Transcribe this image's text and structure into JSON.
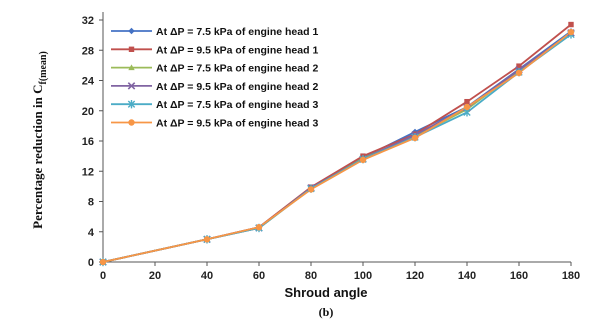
{
  "chart_data": {
    "type": "line",
    "xlabel": "Shroud angle",
    "ylabel_main": "Percentage reduction in C",
    "ylabel_sub": "f(mean)",
    "caption": "(b)",
    "xlim": [
      0,
      180
    ],
    "ylim": [
      0,
      32
    ],
    "x_ticks": [
      "0",
      "20",
      "40",
      "60",
      "80",
      "100",
      "120",
      "140",
      "160",
      "180"
    ],
    "y_ticks": [
      "0",
      "4",
      "8",
      "12",
      "16",
      "20",
      "24",
      "28",
      "32"
    ],
    "grid": false,
    "legend_position": "top-left",
    "x": [
      0,
      40,
      60,
      80,
      100,
      120,
      140,
      160,
      180
    ],
    "series": [
      {
        "name": "At ΔP = 7.5 kPa of engine head 1",
        "color": "#4472c4",
        "marker": "diamond",
        "values": [
          0,
          3.0,
          4.6,
          9.8,
          13.8,
          17.2,
          20.5,
          25.5,
          30.5
        ]
      },
      {
        "name": "At ΔP = 9.5 kPa of engine head 1",
        "color": "#c0504d",
        "marker": "square",
        "values": [
          0,
          3.0,
          4.6,
          9.9,
          14.0,
          16.9,
          21.2,
          25.9,
          31.4
        ]
      },
      {
        "name": "At ΔP = 7.5 kPa of engine head 2",
        "color": "#9bbb59",
        "marker": "triangle",
        "values": [
          0,
          3.0,
          4.5,
          9.7,
          13.7,
          16.6,
          20.2,
          25.3,
          30.2
        ]
      },
      {
        "name": "At ΔP = 9.5 kPa of engine head 2",
        "color": "#8064a2",
        "marker": "x",
        "values": [
          0,
          3.0,
          4.5,
          9.8,
          13.6,
          16.8,
          20.4,
          25.4,
          30.3
        ]
      },
      {
        "name": "At ΔP = 7.5 kPa of engine head 3",
        "color": "#4bacc6",
        "marker": "star",
        "values": [
          0,
          3.0,
          4.5,
          9.7,
          13.6,
          16.5,
          19.8,
          25.1,
          30.1
        ]
      },
      {
        "name": "At ΔP = 9.5 kPa of engine head 3",
        "color": "#f79646",
        "marker": "circle",
        "values": [
          0,
          3.0,
          4.6,
          9.6,
          13.5,
          16.4,
          20.5,
          25.0,
          30.4
        ]
      }
    ]
  }
}
